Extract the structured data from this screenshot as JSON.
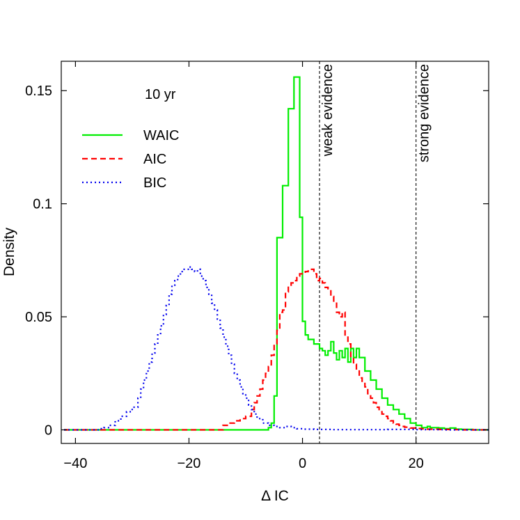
{
  "chart_data": {
    "type": "step-histogram",
    "title": "",
    "xlabel": "Δ IC",
    "ylabel": "Density",
    "xlim": [
      -42.5,
      32.8
    ],
    "ylim": [
      -0.006,
      0.163
    ],
    "x_ticks": [
      -40,
      -20,
      0,
      20
    ],
    "x_tick_labels": [
      "−40",
      "−20",
      "0",
      "20"
    ],
    "y_ticks": [
      0,
      0.05,
      0.1,
      0.15
    ],
    "y_tick_labels": [
      "0",
      "0.05",
      "0.1",
      "0.15"
    ],
    "annotation": "10 yr",
    "legend_position": "top-left",
    "reference_lines": [
      {
        "x": 3,
        "label": "weak evidence"
      },
      {
        "x": 20,
        "label": "strong evidence"
      }
    ],
    "series": [
      {
        "name": "WAIC",
        "style": "solid",
        "color": "#00ee00",
        "x": [
          -42,
          -6,
          -5.5,
          -5,
          -4.5,
          -4,
          -3.5,
          -3,
          -2.5,
          -2,
          -1.5,
          -1,
          -0.5,
          0,
          0.5,
          1,
          1.5,
          2,
          2.5,
          3,
          3.5,
          4,
          4.5,
          5,
          5.5,
          6,
          6.5,
          7,
          7.5,
          8,
          8.5,
          9,
          9.5,
          10,
          10.5,
          11,
          11.5,
          12,
          12.5,
          13,
          13.5,
          14,
          14.5,
          15,
          15.5,
          16,
          16.5,
          17,
          17.5,
          18,
          18.5,
          19,
          19.5,
          20,
          20.5,
          21,
          21.5,
          22,
          22.5,
          23,
          24,
          25,
          26,
          27,
          28,
          30,
          32.8
        ],
        "y": [
          0,
          0.001,
          0.003,
          0.015,
          0.085,
          0.085,
          0.108,
          0.108,
          0.142,
          0.142,
          0.156,
          0.156,
          0.094,
          0.048,
          0.042,
          0.04,
          0.04,
          0.038,
          0.038,
          0.036,
          0.035,
          0.033,
          0.035,
          0.039,
          0.034,
          0.031,
          0.035,
          0.032,
          0.036,
          0.03,
          0.036,
          0.032,
          0.036,
          0.032,
          0.032,
          0.026,
          0.026,
          0.022,
          0.022,
          0.018,
          0.018,
          0.014,
          0.014,
          0.011,
          0.011,
          0.009,
          0.009,
          0.007,
          0.007,
          0.005,
          0.005,
          0.003,
          0.003,
          0.002,
          0.002,
          0.001,
          0.001,
          0.0015,
          0.001,
          0.001,
          0.0008,
          0.0005,
          0.0008,
          0.0003,
          0.0002,
          0,
          0
        ]
      },
      {
        "name": "AIC",
        "style": "dashed",
        "color": "#ff0000",
        "x": [
          -42,
          -14,
          -13,
          -12,
          -11,
          -10,
          -9,
          -8.5,
          -8,
          -7.5,
          -7,
          -6.5,
          -6,
          -5.5,
          -5,
          -4.5,
          -4,
          -3.5,
          -3,
          -2.5,
          -2,
          -1.5,
          -1,
          -0.5,
          0,
          0.5,
          1,
          1.5,
          2,
          2.5,
          3,
          3.5,
          4,
          4.5,
          5,
          5.5,
          6,
          6.5,
          7,
          7.5,
          8,
          8.5,
          9,
          9.5,
          10,
          10.5,
          11,
          11.5,
          12,
          12.5,
          13,
          13.5,
          14,
          14.5,
          15,
          15.5,
          16,
          16.5,
          17,
          17.5,
          18,
          18.5,
          19,
          20,
          21,
          22,
          24,
          26,
          28,
          32.8
        ],
        "y": [
          0,
          0.002,
          0.003,
          0.004,
          0.005,
          0.006,
          0.009,
          0.012,
          0.015,
          0.018,
          0.022,
          0.025,
          0.028,
          0.033,
          0.038,
          0.044,
          0.052,
          0.053,
          0.061,
          0.064,
          0.065,
          0.066,
          0.068,
          0.069,
          0.069,
          0.07,
          0.071,
          0.071,
          0.069,
          0.066,
          0.067,
          0.065,
          0.063,
          0.062,
          0.059,
          0.056,
          0.052,
          0.05,
          0.052,
          0.041,
          0.038,
          0.032,
          0.029,
          0.026,
          0.023,
          0.021,
          0.019,
          0.016,
          0.014,
          0.012,
          0.01,
          0.008,
          0.007,
          0.006,
          0.005,
          0.004,
          0.003,
          0.0025,
          0.002,
          0.0015,
          0.0012,
          0.001,
          0.0008,
          0.0006,
          0.0004,
          0.0003,
          0.0002,
          0.0001,
          0,
          0
        ]
      },
      {
        "name": "BIC",
        "style": "dotted",
        "color": "#0000ee",
        "x": [
          -42,
          -36,
          -35,
          -34,
          -33,
          -32,
          -31,
          -30,
          -29,
          -28.5,
          -28,
          -27.5,
          -27,
          -26.5,
          -26,
          -25.5,
          -25,
          -24.5,
          -24,
          -23.5,
          -23,
          -22.5,
          -22,
          -21.5,
          -21,
          -20.5,
          -20,
          -19.5,
          -19,
          -18.5,
          -18,
          -17.5,
          -17,
          -16.5,
          -16,
          -15.5,
          -15,
          -14.5,
          -14,
          -13.5,
          -13,
          -12.5,
          -12,
          -11.5,
          -11,
          -10.5,
          -10,
          -9.5,
          -9,
          -8.5,
          -8,
          -7,
          -6,
          -5,
          -4,
          -3,
          -2,
          -1,
          0,
          2,
          5,
          10,
          15,
          20,
          25,
          32.8
        ],
        "y": [
          0,
          0.0005,
          0.001,
          0.002,
          0.004,
          0.006,
          0.008,
          0.01,
          0.014,
          0.018,
          0.022,
          0.026,
          0.03,
          0.034,
          0.038,
          0.042,
          0.046,
          0.051,
          0.055,
          0.06,
          0.064,
          0.066,
          0.068,
          0.07,
          0.071,
          0.071,
          0.072,
          0.071,
          0.07,
          0.071,
          0.068,
          0.066,
          0.063,
          0.06,
          0.056,
          0.053,
          0.049,
          0.045,
          0.041,
          0.037,
          0.033,
          0.029,
          0.025,
          0.022,
          0.019,
          0.016,
          0.014,
          0.011,
          0.009,
          0.007,
          0.005,
          0.003,
          0.002,
          0.0015,
          0.001,
          0.0015,
          0.001,
          0.0005,
          0.0003,
          0.0002,
          0.0001,
          0.0001,
          0.0002,
          0.0001,
          0,
          0
        ]
      }
    ]
  }
}
